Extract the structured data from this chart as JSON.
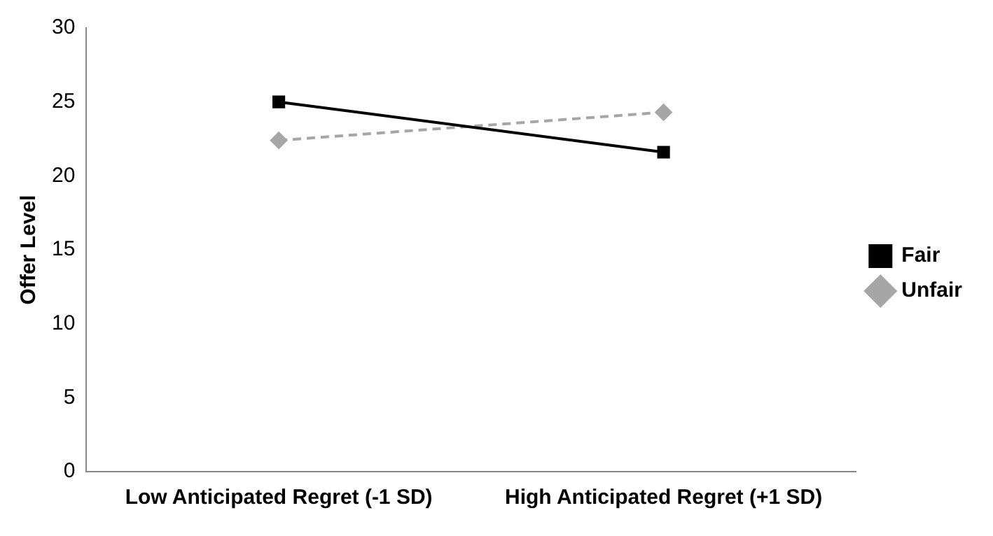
{
  "chart_data": {
    "type": "line",
    "ylabel": "Offer Level",
    "categories": [
      "Low Anticipated Regret (-1 SD)",
      "High Anticipated Regret (+1 SD)"
    ],
    "series": [
      {
        "name": "Fair",
        "color": "#000000",
        "values": [
          25,
          21.6
        ],
        "marker": "square",
        "line_style": "solid"
      },
      {
        "name": "Unfair",
        "color": "#a6a6a6",
        "values": [
          22.4,
          24.3
        ],
        "marker": "diamond",
        "line_style": "dashed"
      }
    ],
    "ylim": [
      0,
      30
    ],
    "yticks": [
      0,
      5,
      10,
      15,
      20,
      25,
      30
    ],
    "grid": false,
    "legend": "right"
  }
}
